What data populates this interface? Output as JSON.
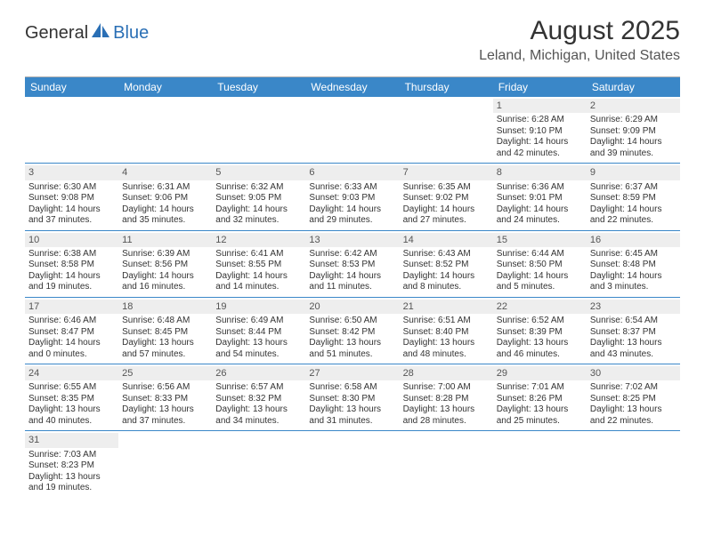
{
  "logo": {
    "general": "General",
    "blue": "Blue"
  },
  "title": "August 2025",
  "location": "Leland, Michigan, United States",
  "colors": {
    "header_bg": "#3a87c8",
    "header_text": "#ffffff",
    "daynum_bg": "#eeeeee",
    "border": "#3a87c8",
    "text": "#333333",
    "logo_blue": "#2a6fb5"
  },
  "day_names": [
    "Sunday",
    "Monday",
    "Tuesday",
    "Wednesday",
    "Thursday",
    "Friday",
    "Saturday"
  ],
  "weeks": [
    [
      null,
      null,
      null,
      null,
      null,
      {
        "n": "1",
        "sr": "6:28 AM",
        "ss": "9:10 PM",
        "dl": "14 hours and 42 minutes."
      },
      {
        "n": "2",
        "sr": "6:29 AM",
        "ss": "9:09 PM",
        "dl": "14 hours and 39 minutes."
      }
    ],
    [
      {
        "n": "3",
        "sr": "6:30 AM",
        "ss": "9:08 PM",
        "dl": "14 hours and 37 minutes."
      },
      {
        "n": "4",
        "sr": "6:31 AM",
        "ss": "9:06 PM",
        "dl": "14 hours and 35 minutes."
      },
      {
        "n": "5",
        "sr": "6:32 AM",
        "ss": "9:05 PM",
        "dl": "14 hours and 32 minutes."
      },
      {
        "n": "6",
        "sr": "6:33 AM",
        "ss": "9:03 PM",
        "dl": "14 hours and 29 minutes."
      },
      {
        "n": "7",
        "sr": "6:35 AM",
        "ss": "9:02 PM",
        "dl": "14 hours and 27 minutes."
      },
      {
        "n": "8",
        "sr": "6:36 AM",
        "ss": "9:01 PM",
        "dl": "14 hours and 24 minutes."
      },
      {
        "n": "9",
        "sr": "6:37 AM",
        "ss": "8:59 PM",
        "dl": "14 hours and 22 minutes."
      }
    ],
    [
      {
        "n": "10",
        "sr": "6:38 AM",
        "ss": "8:58 PM",
        "dl": "14 hours and 19 minutes."
      },
      {
        "n": "11",
        "sr": "6:39 AM",
        "ss": "8:56 PM",
        "dl": "14 hours and 16 minutes."
      },
      {
        "n": "12",
        "sr": "6:41 AM",
        "ss": "8:55 PM",
        "dl": "14 hours and 14 minutes."
      },
      {
        "n": "13",
        "sr": "6:42 AM",
        "ss": "8:53 PM",
        "dl": "14 hours and 11 minutes."
      },
      {
        "n": "14",
        "sr": "6:43 AM",
        "ss": "8:52 PM",
        "dl": "14 hours and 8 minutes."
      },
      {
        "n": "15",
        "sr": "6:44 AM",
        "ss": "8:50 PM",
        "dl": "14 hours and 5 minutes."
      },
      {
        "n": "16",
        "sr": "6:45 AM",
        "ss": "8:48 PM",
        "dl": "14 hours and 3 minutes."
      }
    ],
    [
      {
        "n": "17",
        "sr": "6:46 AM",
        "ss": "8:47 PM",
        "dl": "14 hours and 0 minutes."
      },
      {
        "n": "18",
        "sr": "6:48 AM",
        "ss": "8:45 PM",
        "dl": "13 hours and 57 minutes."
      },
      {
        "n": "19",
        "sr": "6:49 AM",
        "ss": "8:44 PM",
        "dl": "13 hours and 54 minutes."
      },
      {
        "n": "20",
        "sr": "6:50 AM",
        "ss": "8:42 PM",
        "dl": "13 hours and 51 minutes."
      },
      {
        "n": "21",
        "sr": "6:51 AM",
        "ss": "8:40 PM",
        "dl": "13 hours and 48 minutes."
      },
      {
        "n": "22",
        "sr": "6:52 AM",
        "ss": "8:39 PM",
        "dl": "13 hours and 46 minutes."
      },
      {
        "n": "23",
        "sr": "6:54 AM",
        "ss": "8:37 PM",
        "dl": "13 hours and 43 minutes."
      }
    ],
    [
      {
        "n": "24",
        "sr": "6:55 AM",
        "ss": "8:35 PM",
        "dl": "13 hours and 40 minutes."
      },
      {
        "n": "25",
        "sr": "6:56 AM",
        "ss": "8:33 PM",
        "dl": "13 hours and 37 minutes."
      },
      {
        "n": "26",
        "sr": "6:57 AM",
        "ss": "8:32 PM",
        "dl": "13 hours and 34 minutes."
      },
      {
        "n": "27",
        "sr": "6:58 AM",
        "ss": "8:30 PM",
        "dl": "13 hours and 31 minutes."
      },
      {
        "n": "28",
        "sr": "7:00 AM",
        "ss": "8:28 PM",
        "dl": "13 hours and 28 minutes."
      },
      {
        "n": "29",
        "sr": "7:01 AM",
        "ss": "8:26 PM",
        "dl": "13 hours and 25 minutes."
      },
      {
        "n": "30",
        "sr": "7:02 AM",
        "ss": "8:25 PM",
        "dl": "13 hours and 22 minutes."
      }
    ],
    [
      {
        "n": "31",
        "sr": "7:03 AM",
        "ss": "8:23 PM",
        "dl": "13 hours and 19 minutes."
      },
      null,
      null,
      null,
      null,
      null,
      null
    ]
  ],
  "labels": {
    "sunrise": "Sunrise: ",
    "sunset": "Sunset: ",
    "daylight": "Daylight: "
  }
}
